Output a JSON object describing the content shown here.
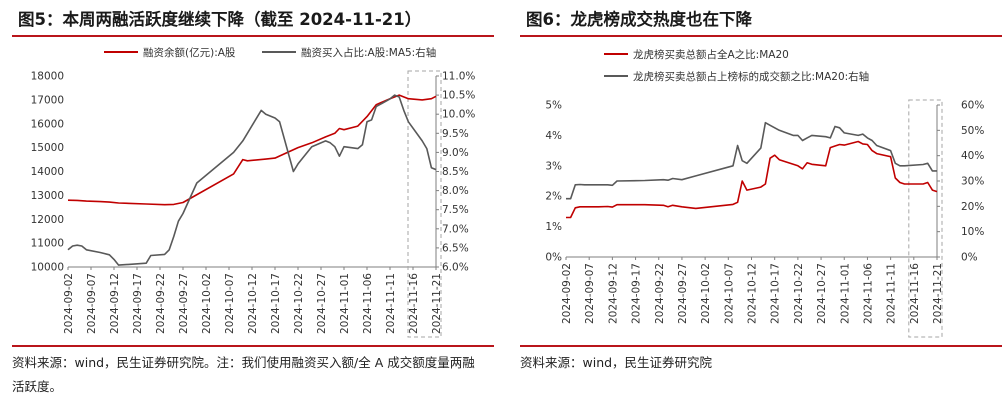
{
  "chart_data": [
    {
      "type": "line",
      "title": "图5：本周两融活跃度继续下降（截至 2024-11-21）",
      "source": "资料来源：wind，民生证券研究院。注：我们使用融资买入额/全 A 成交额度量两融活跃度。",
      "x_ticks": [
        "2024-09-02",
        "2024-09-07",
        "2024-09-12",
        "2024-09-17",
        "2024-09-22",
        "2024-09-27",
        "2024-10-02",
        "2024-10-07",
        "2024-10-12",
        "2024-10-17",
        "2024-10-22",
        "2024-10-27",
        "2024-11-01",
        "2024-11-06",
        "2024-11-11",
        "2024-11-16",
        "2024-11-21"
      ],
      "y_left": {
        "ticks": [
          "10000",
          "11000",
          "12000",
          "13000",
          "14000",
          "15000",
          "16000",
          "17000",
          "18000"
        ],
        "ylim": [
          10000,
          18000
        ]
      },
      "y_right": {
        "ticks": [
          "6.0%",
          "6.5%",
          "7.0%",
          "7.5%",
          "8.0%",
          "8.5%",
          "9.0%",
          "9.5%",
          "10.0%",
          "10.5%",
          "11.0%"
        ],
        "ylim": [
          6.0,
          11.0
        ]
      },
      "highlight": {
        "from": "2024-11-16",
        "to": "2024-11-21",
        "style": "dashed-box"
      },
      "series": [
        {
          "name": "融资余额(亿元):A股",
          "axis": "left",
          "color": "#c00000",
          "points": [
            [
              "2024-09-02",
              12800
            ],
            [
              "2024-09-04",
              12790
            ],
            [
              "2024-09-06",
              12760
            ],
            [
              "2024-09-09",
              12740
            ],
            [
              "2024-09-11",
              12720
            ],
            [
              "2024-09-13",
              12680
            ],
            [
              "2024-09-19",
              12640
            ],
            [
              "2024-09-23",
              12610
            ],
            [
              "2024-09-25",
              12620
            ],
            [
              "2024-09-27",
              12700
            ],
            [
              "2024-10-08",
              13900
            ],
            [
              "2024-10-10",
              14500
            ],
            [
              "2024-10-11",
              14450
            ],
            [
              "2024-10-15",
              14520
            ],
            [
              "2024-10-17",
              14560
            ],
            [
              "2024-10-18",
              14650
            ],
            [
              "2024-10-22",
              15000
            ],
            [
              "2024-10-25",
              15200
            ],
            [
              "2024-10-28",
              15450
            ],
            [
              "2024-10-30",
              15600
            ],
            [
              "2024-10-31",
              15800
            ],
            [
              "2024-11-01",
              15750
            ],
            [
              "2024-11-04",
              15900
            ],
            [
              "2024-11-06",
              16300
            ],
            [
              "2024-11-08",
              16800
            ],
            [
              "2024-11-11",
              17050
            ],
            [
              "2024-11-13",
              17200
            ],
            [
              "2024-11-15",
              17050
            ],
            [
              "2024-11-18",
              17000
            ],
            [
              "2024-11-20",
              17050
            ],
            [
              "2024-11-21",
              17150
            ]
          ]
        },
        {
          "name": "融资买入占比:A股:MA5:右轴",
          "axis": "right",
          "color": "#595959",
          "points": [
            [
              "2024-09-02",
              6.45
            ],
            [
              "2024-09-03",
              6.55
            ],
            [
              "2024-09-04",
              6.57
            ],
            [
              "2024-09-05",
              6.55
            ],
            [
              "2024-09-06",
              6.45
            ],
            [
              "2024-09-09",
              6.38
            ],
            [
              "2024-09-11",
              6.32
            ],
            [
              "2024-09-12",
              6.2
            ],
            [
              "2024-09-13",
              6.05
            ],
            [
              "2024-09-19",
              6.1
            ],
            [
              "2024-09-20",
              6.3
            ],
            [
              "2024-09-23",
              6.33
            ],
            [
              "2024-09-24",
              6.45
            ],
            [
              "2024-09-25",
              6.8
            ],
            [
              "2024-09-26",
              7.2
            ],
            [
              "2024-09-27",
              7.4
            ],
            [
              "2024-09-30",
              8.2
            ],
            [
              "2024-10-08",
              9.0
            ],
            [
              "2024-10-10",
              9.3
            ],
            [
              "2024-10-11",
              9.5
            ],
            [
              "2024-10-14",
              10.1
            ],
            [
              "2024-10-15",
              10.0
            ],
            [
              "2024-10-17",
              9.9
            ],
            [
              "2024-10-18",
              9.8
            ],
            [
              "2024-10-21",
              8.5
            ],
            [
              "2024-10-22",
              8.7
            ],
            [
              "2024-10-23",
              8.85
            ],
            [
              "2024-10-25",
              9.15
            ],
            [
              "2024-10-28",
              9.3
            ],
            [
              "2024-10-29",
              9.25
            ],
            [
              "2024-10-30",
              9.15
            ],
            [
              "2024-10-31",
              8.9
            ],
            [
              "2024-11-01",
              9.15
            ],
            [
              "2024-11-04",
              9.1
            ],
            [
              "2024-11-05",
              9.2
            ],
            [
              "2024-11-06",
              9.8
            ],
            [
              "2024-11-07",
              9.85
            ],
            [
              "2024-11-08",
              10.2
            ],
            [
              "2024-11-11",
              10.4
            ],
            [
              "2024-11-12",
              10.5
            ],
            [
              "2024-11-13",
              10.45
            ],
            [
              "2024-11-14",
              10.1
            ],
            [
              "2024-11-15",
              9.8
            ],
            [
              "2024-11-18",
              9.3
            ],
            [
              "2024-11-19",
              9.1
            ],
            [
              "2024-11-20",
              8.6
            ],
            [
              "2024-11-21",
              8.55
            ]
          ]
        }
      ]
    },
    {
      "type": "line",
      "title": "图6：龙虎榜成交热度也在下降",
      "source": "资料来源：wind，民生证券研究院",
      "x_ticks": [
        "2024-09-02",
        "2024-09-07",
        "2024-09-12",
        "2024-09-17",
        "2024-09-22",
        "2024-09-27",
        "2024-10-02",
        "2024-10-07",
        "2024-10-12",
        "2024-10-17",
        "2024-10-22",
        "2024-10-27",
        "2024-11-01",
        "2024-11-06",
        "2024-11-11",
        "2024-11-16",
        "2024-11-21"
      ],
      "y_left": {
        "ticks": [
          "0%",
          "1%",
          "2%",
          "3%",
          "4%",
          "5%"
        ],
        "ylim": [
          0,
          5
        ]
      },
      "y_right": {
        "ticks": [
          "0%",
          "10%",
          "20%",
          "30%",
          "40%",
          "50%",
          "60%"
        ],
        "ylim": [
          0,
          60
        ]
      },
      "highlight": {
        "from": "2024-11-16",
        "to": "2024-11-21",
        "style": "dashed-box"
      },
      "series": [
        {
          "name": "龙虎榜买卖总额占全A之比:MA20",
          "axis": "left",
          "color": "#c00000",
          "points": [
            [
              "2024-09-02",
              1.3
            ],
            [
              "2024-09-03",
              1.3
            ],
            [
              "2024-09-04",
              1.62
            ],
            [
              "2024-09-05",
              1.65
            ],
            [
              "2024-09-06",
              1.65
            ],
            [
              "2024-09-09",
              1.65
            ],
            [
              "2024-09-11",
              1.66
            ],
            [
              "2024-09-12",
              1.64
            ],
            [
              "2024-09-13",
              1.72
            ],
            [
              "2024-09-19",
              1.72
            ],
            [
              "2024-09-23",
              1.7
            ],
            [
              "2024-09-24",
              1.65
            ],
            [
              "2024-09-25",
              1.7
            ],
            [
              "2024-09-27",
              1.65
            ],
            [
              "2024-09-30",
              1.6
            ],
            [
              "2024-10-08",
              1.73
            ],
            [
              "2024-10-09",
              1.8
            ],
            [
              "2024-10-10",
              2.5
            ],
            [
              "2024-10-11",
              2.2
            ],
            [
              "2024-10-14",
              2.3
            ],
            [
              "2024-10-15",
              2.4
            ],
            [
              "2024-10-16",
              3.25
            ],
            [
              "2024-10-17",
              3.35
            ],
            [
              "2024-10-18",
              3.2
            ],
            [
              "2024-10-22",
              3.0
            ],
            [
              "2024-10-23",
              2.9
            ],
            [
              "2024-10-24",
              3.1
            ],
            [
              "2024-10-25",
              3.05
            ],
            [
              "2024-10-28",
              3.0
            ],
            [
              "2024-10-29",
              3.6
            ],
            [
              "2024-10-30",
              3.65
            ],
            [
              "2024-10-31",
              3.7
            ],
            [
              "2024-11-01",
              3.68
            ],
            [
              "2024-11-04",
              3.8
            ],
            [
              "2024-11-05",
              3.72
            ],
            [
              "2024-11-06",
              3.7
            ],
            [
              "2024-11-07",
              3.5
            ],
            [
              "2024-11-08",
              3.4
            ],
            [
              "2024-11-11",
              3.3
            ],
            [
              "2024-11-12",
              2.6
            ],
            [
              "2024-11-13",
              2.45
            ],
            [
              "2024-11-14",
              2.4
            ],
            [
              "2024-11-18",
              2.4
            ],
            [
              "2024-11-19",
              2.45
            ],
            [
              "2024-11-20",
              2.2
            ],
            [
              "2024-11-21",
              2.15
            ]
          ]
        },
        {
          "name": "龙虎榜买卖总额占上榜标的成交额之比:MA20:右轴",
          "axis": "right",
          "color": "#595959",
          "points": [
            [
              "2024-09-02",
              23
            ],
            [
              "2024-09-03",
              23
            ],
            [
              "2024-09-04",
              28.5
            ],
            [
              "2024-09-05",
              28.6
            ],
            [
              "2024-09-06",
              28.5
            ],
            [
              "2024-09-09",
              28.5
            ],
            [
              "2024-09-11",
              28.5
            ],
            [
              "2024-09-12",
              28.3
            ],
            [
              "2024-09-13",
              30
            ],
            [
              "2024-09-19",
              30.2
            ],
            [
              "2024-09-23",
              30.5
            ],
            [
              "2024-09-24",
              30.3
            ],
            [
              "2024-09-25",
              31
            ],
            [
              "2024-09-27",
              30.5
            ],
            [
              "2024-09-30",
              32
            ],
            [
              "2024-10-08",
              36
            ],
            [
              "2024-10-09",
              44
            ],
            [
              "2024-10-10",
              38
            ],
            [
              "2024-10-11",
              37
            ],
            [
              "2024-10-14",
              43
            ],
            [
              "2024-10-15",
              53
            ],
            [
              "2024-10-16",
              52
            ],
            [
              "2024-10-17",
              51
            ],
            [
              "2024-10-18",
              50
            ],
            [
              "2024-10-21",
              48
            ],
            [
              "2024-10-22",
              48
            ],
            [
              "2024-10-23",
              46
            ],
            [
              "2024-10-24",
              47
            ],
            [
              "2024-10-25",
              48
            ],
            [
              "2024-10-28",
              47.5
            ],
            [
              "2024-10-29",
              47
            ],
            [
              "2024-10-30",
              51.5
            ],
            [
              "2024-10-31",
              51
            ],
            [
              "2024-11-01",
              49
            ],
            [
              "2024-11-04",
              48
            ],
            [
              "2024-11-05",
              48.5
            ],
            [
              "2024-11-06",
              47
            ],
            [
              "2024-11-07",
              46
            ],
            [
              "2024-11-08",
              44
            ],
            [
              "2024-11-11",
              42
            ],
            [
              "2024-11-12",
              37
            ],
            [
              "2024-11-13",
              36
            ],
            [
              "2024-11-14",
              36
            ],
            [
              "2024-11-18",
              36.5
            ],
            [
              "2024-11-19",
              37
            ],
            [
              "2024-11-20",
              34
            ],
            [
              "2024-11-21",
              34
            ]
          ]
        }
      ]
    }
  ]
}
